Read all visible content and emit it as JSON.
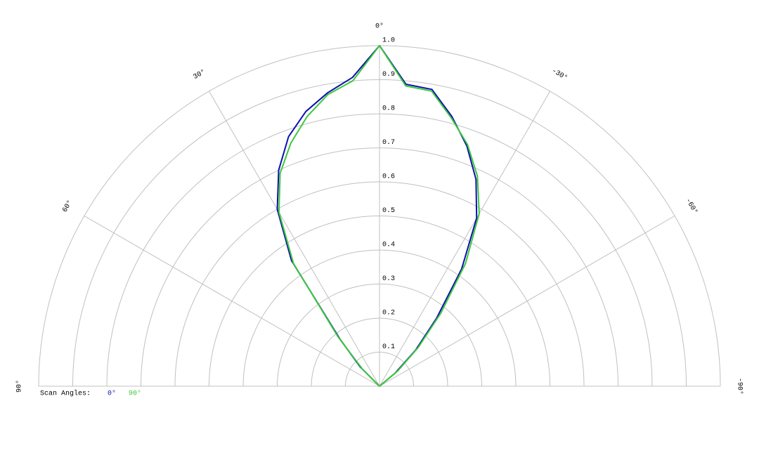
{
  "chart_data": {
    "type": "polar",
    "x": [
      90,
      85,
      80,
      75,
      70,
      65,
      60,
      55,
      50,
      45,
      40,
      35,
      30,
      25,
      20,
      15,
      10,
      5,
      0,
      -5,
      -10,
      -15,
      -20,
      -25,
      -30,
      -35,
      -40,
      -45,
      -50,
      -55,
      -60,
      -65,
      -70,
      -75,
      -80,
      -85,
      -90
    ],
    "series": [
      {
        "name": "0°",
        "color": "#1010b0",
        "values": [
          0,
          0,
          0,
          0,
          0,
          0,
          0,
          0,
          0,
          0.08,
          0.18,
          0.45,
          0.6,
          0.7,
          0.78,
          0.835,
          0.875,
          0.91,
          1.0,
          0.89,
          0.885,
          0.82,
          0.75,
          0.67,
          0.57,
          0.42,
          0.26,
          0.15,
          0.06,
          0,
          0,
          0,
          0,
          0,
          0,
          0,
          0
        ]
      },
      {
        "name": "90°",
        "color": "#3cc83c",
        "values": [
          0,
          0,
          0,
          0,
          0,
          0,
          0,
          0,
          0,
          0.07,
          0.19,
          0.44,
          0.59,
          0.69,
          0.76,
          0.82,
          0.87,
          0.9,
          1.0,
          0.885,
          0.88,
          0.815,
          0.755,
          0.68,
          0.585,
          0.44,
          0.28,
          0.16,
          0.07,
          0,
          0,
          0,
          0,
          0,
          0,
          0,
          0
        ]
      }
    ],
    "xlim": [
      90,
      -90
    ],
    "xticks": [
      {
        "value": 90,
        "label": "90°"
      },
      {
        "value": 60,
        "label": "60°"
      },
      {
        "value": 30,
        "label": "30°"
      },
      {
        "value": 0,
        "label": "0°"
      },
      {
        "value": -30,
        "label": "-30°"
      },
      {
        "value": -60,
        "label": "-60°"
      },
      {
        "value": -90,
        "label": "-90°"
      }
    ],
    "ylim": [
      0,
      1
    ],
    "yticks": [
      0.1,
      0.2,
      0.3,
      0.4,
      0.5,
      0.6,
      0.7,
      0.8,
      0.9,
      {
        "value": 1,
        "label": "1.0"
      }
    ],
    "legend_title": "Scan Angles:",
    "grid": true
  }
}
